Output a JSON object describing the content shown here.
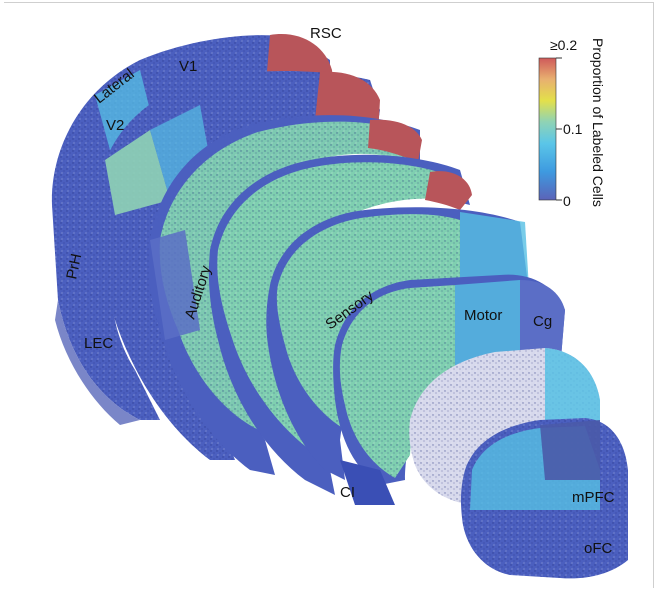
{
  "region_labels": {
    "rsc": "RSC",
    "v1": "V1",
    "lateral": "Lateral",
    "v2": "V2",
    "prh": "PrH",
    "lec": "LEC",
    "auditory": "Auditory",
    "sensory": "Sensory",
    "motor": "Motor",
    "cg": "Cg",
    "ci": "CI",
    "mpfc": "mPFC",
    "ofc": "oFC"
  },
  "colorbar": {
    "title": "Proportion of Labeled Cells",
    "tick_max": "≥0.2",
    "tick_mid": "0.1",
    "tick_min": "0",
    "value_min": 0,
    "value_max": 0.2,
    "colors": [
      "#5b63b8",
      "#3e9ae0",
      "#5bc6e8",
      "#8fd3b5",
      "#e3e04a",
      "#e8b070",
      "#cf5a5a"
    ]
  },
  "colors": {
    "low_cells": "#3a4fb5",
    "cyan_region": "#56bfe4",
    "green_region": "#7fcfb0",
    "red_region": "#b8555a",
    "pale_region": "#d7d9ec"
  }
}
